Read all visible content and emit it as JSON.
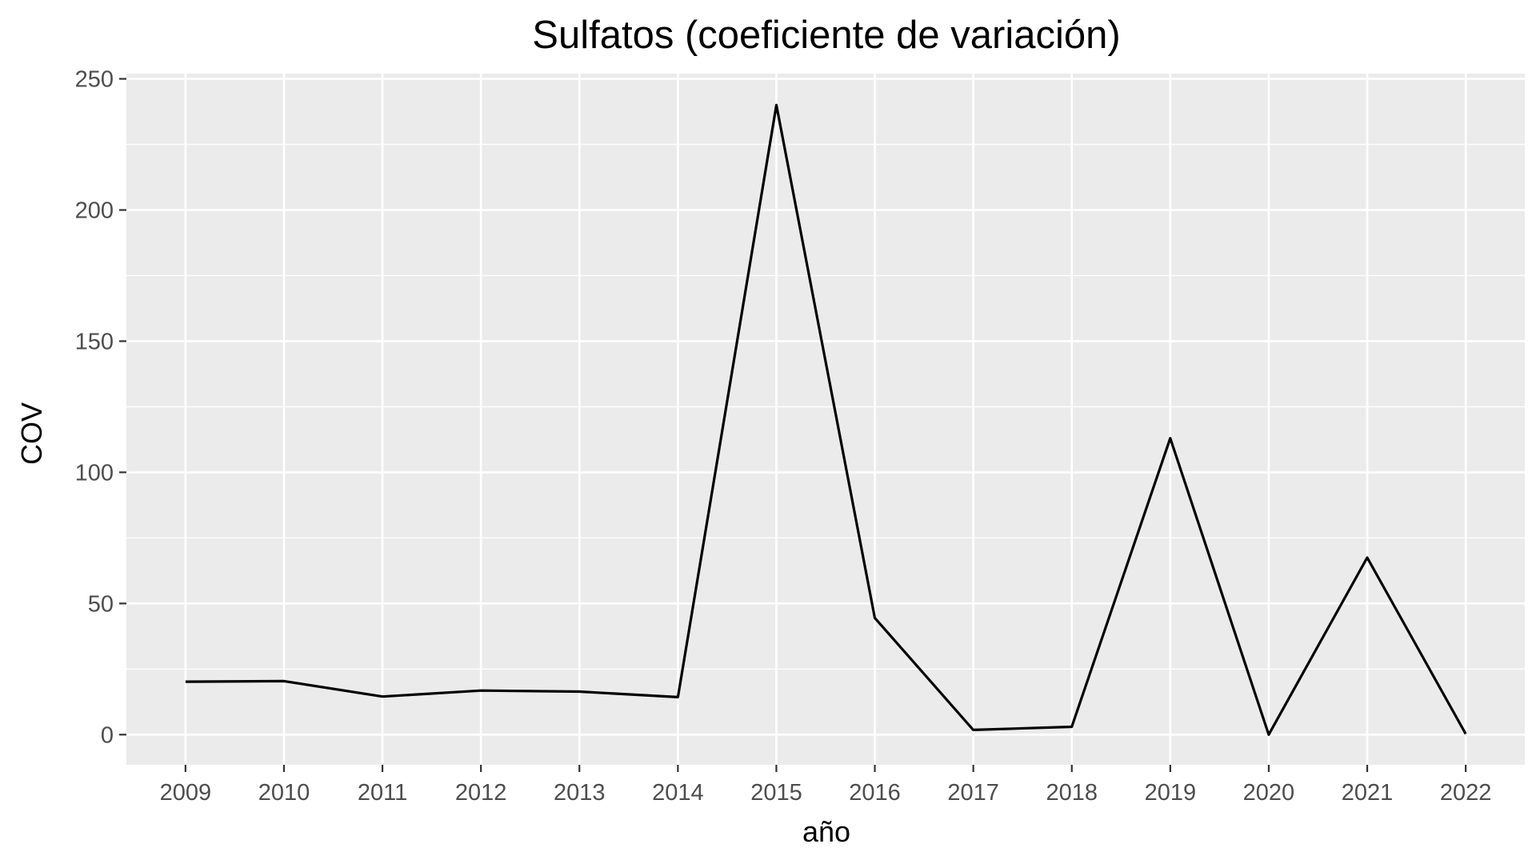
{
  "chart_data": {
    "type": "line",
    "title": "Sulfatos (coeficiente de variación)",
    "xlabel": "año",
    "ylabel": "COV",
    "x": [
      "2009",
      "2010",
      "2011",
      "2012",
      "2013",
      "2014",
      "2015",
      "2016",
      "2017",
      "2018",
      "2019",
      "2020",
      "2021",
      "2022"
    ],
    "series": [
      {
        "values": [
          20.2,
          20.4,
          14.5,
          16.8,
          16.4,
          14.3,
          240.0,
          44.5,
          1.8,
          3.0,
          113.0,
          0.0,
          67.5,
          0.3
        ]
      }
    ],
    "ylim": [
      -11.5,
      252
    ],
    "yticks": [
      0,
      50,
      100,
      150,
      200,
      250
    ],
    "grid": true,
    "legend": "none",
    "colors": {
      "panel": "#ebebeb",
      "grid": "#ffffff",
      "line": "#000000",
      "tick": "#333333"
    }
  }
}
